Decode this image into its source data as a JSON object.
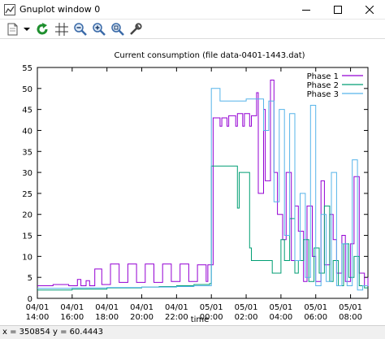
{
  "window": {
    "title": "Gnuplot window 0"
  },
  "toolbar": {
    "items": [
      {
        "name": "copy-icon",
        "kind": "copy"
      },
      {
        "name": "dropdown-arrow-icon",
        "kind": "arrow"
      },
      {
        "name": "replot-icon",
        "kind": "replot"
      },
      {
        "name": "grid-icon",
        "kind": "grid"
      },
      {
        "name": "zoom-out-icon",
        "kind": "zoomout"
      },
      {
        "name": "zoom-in-icon",
        "kind": "zoomin"
      },
      {
        "name": "autoscale-icon",
        "kind": "autoscale"
      },
      {
        "name": "options-wrench-icon",
        "kind": "wrench"
      }
    ]
  },
  "status": {
    "text": "x = 350854 y = 60.4443"
  },
  "chart_data": {
    "type": "line",
    "title": "Current consumption  (file data-0401-1443.dat)",
    "xlabel": "time",
    "ylabel": "",
    "ylim": [
      0,
      55
    ],
    "y_ticks": [
      0,
      5,
      10,
      15,
      20,
      25,
      30,
      35,
      40,
      45,
      50,
      55
    ],
    "x_unit": "hours since 04/01 14:00",
    "xlim": [
      0,
      19
    ],
    "x_ticks": [
      {
        "x": 0,
        "l1": "04/01",
        "l2": "14:00"
      },
      {
        "x": 2,
        "l1": "04/01",
        "l2": "16:00"
      },
      {
        "x": 4,
        "l1": "04/01",
        "l2": "18:00"
      },
      {
        "x": 6,
        "l1": "04/01",
        "l2": "20:00"
      },
      {
        "x": 8,
        "l1": "04/01",
        "l2": "22:00"
      },
      {
        "x": 10,
        "l1": "05/01",
        "l2": "00:00"
      },
      {
        "x": 12,
        "l1": "05/01",
        "l2": "02:00"
      },
      {
        "x": 14,
        "l1": "05/01",
        "l2": "04:00"
      },
      {
        "x": 16,
        "l1": "05/01",
        "l2": "06:00"
      },
      {
        "x": 18,
        "l1": "05/01",
        "l2": "08:00"
      }
    ],
    "grid": false,
    "legend_position": "top-right",
    "series": [
      {
        "name": "Phase 1",
        "color": "#9400d3",
        "x": [
          0.0,
          0.9,
          1.8,
          2.2,
          2.3,
          2.5,
          2.6,
          2.8,
          3.0,
          3.2,
          3.3,
          3.6,
          3.7,
          4.0,
          4.2,
          4.5,
          4.7,
          5.0,
          5.2,
          5.5,
          5.7,
          6.0,
          6.2,
          6.5,
          6.7,
          7.0,
          7.2,
          7.5,
          7.7,
          8.0,
          8.2,
          8.5,
          8.7,
          9.0,
          9.2,
          9.5,
          9.7,
          9.8,
          10.0,
          10.1,
          10.5,
          10.6,
          10.9,
          11.0,
          11.4,
          11.5,
          11.8,
          11.9,
          12.2,
          12.3,
          12.6,
          12.7,
          13.0,
          13.1,
          13.4,
          13.6,
          13.8,
          14.1,
          14.3,
          14.6,
          14.8,
          15.0,
          15.3,
          15.5,
          15.8,
          16.0,
          16.3,
          16.5,
          16.8,
          17.0,
          17.2,
          17.5,
          17.7,
          18.0,
          18.2,
          18.5,
          18.8,
          19.0
        ],
        "values": [
          3.0,
          3.3,
          3.0,
          3.0,
          4.5,
          3.0,
          3.0,
          4.2,
          3.0,
          3.0,
          7.0,
          7.0,
          3.3,
          3.3,
          8.2,
          8.2,
          3.8,
          3.8,
          8.2,
          8.2,
          3.8,
          3.8,
          8.2,
          8.2,
          3.8,
          3.8,
          8.2,
          8.2,
          4.0,
          4.0,
          8.2,
          8.2,
          4.0,
          4.0,
          8.0,
          8.0,
          4.0,
          8.0,
          8.0,
          43.0,
          41.0,
          43.0,
          41.0,
          43.5,
          41.0,
          44.0,
          41.0,
          44.0,
          41.0,
          43.5,
          49.0,
          25.0,
          45.0,
          28.0,
          52.0,
          30.0,
          20.0,
          14.0,
          30.0,
          9.0,
          22.0,
          16.0,
          4.0,
          22.0,
          10.0,
          4.0,
          28.0,
          8.0,
          20.0,
          14.0,
          6.0,
          15.0,
          4.0,
          13.0,
          29.0,
          6.0,
          3.0,
          5.0
        ]
      },
      {
        "name": "Phase 2",
        "color": "#009e73",
        "x": [
          0.0,
          1.0,
          2.0,
          3.0,
          4.0,
          5.0,
          6.0,
          7.0,
          8.0,
          9.0,
          9.9,
          10.0,
          11.0,
          11.5,
          11.6,
          12.2,
          12.3,
          13.0,
          13.5,
          14.0,
          14.2,
          14.5,
          14.8,
          15.0,
          15.3,
          15.6,
          15.9,
          16.2,
          16.5,
          16.8,
          17.0,
          17.3,
          17.6,
          17.9,
          18.2,
          18.5,
          18.8,
          19.0
        ],
        "values": [
          2.0,
          2.0,
          2.2,
          2.2,
          2.5,
          2.5,
          2.7,
          2.8,
          3.0,
          3.3,
          3.5,
          31.5,
          31.5,
          21.5,
          30.0,
          12.0,
          9.0,
          9.0,
          6.0,
          14.0,
          9.0,
          19.0,
          6.0,
          9.0,
          14.0,
          4.0,
          12.0,
          6.0,
          22.0,
          4.0,
          9.0,
          3.0,
          13.0,
          5.0,
          10.0,
          3.0,
          2.5,
          2.5
        ]
      },
      {
        "name": "Phase 3",
        "color": "#56b4e9",
        "x": [
          0.0,
          2.0,
          4.0,
          6.0,
          8.0,
          9.0,
          9.9,
          10.0,
          10.5,
          11.0,
          11.6,
          12.0,
          12.8,
          13.0,
          13.3,
          13.6,
          13.9,
          14.2,
          14.5,
          14.8,
          15.1,
          15.4,
          15.7,
          16.0,
          16.3,
          16.6,
          16.9,
          17.2,
          17.5,
          17.8,
          18.1,
          18.4,
          18.7,
          19.0
        ],
        "values": [
          2.4,
          2.5,
          2.6,
          2.7,
          2.8,
          3.0,
          3.0,
          50.0,
          47.0,
          47.0,
          47.0,
          47.5,
          47.5,
          40.0,
          47.0,
          23.0,
          45.0,
          15.0,
          44.0,
          9.0,
          25.0,
          5.0,
          46.0,
          3.0,
          20.0,
          4.0,
          30.0,
          3.0,
          13.0,
          3.0,
          33.0,
          2.0,
          3.0,
          3.0
        ]
      }
    ]
  }
}
